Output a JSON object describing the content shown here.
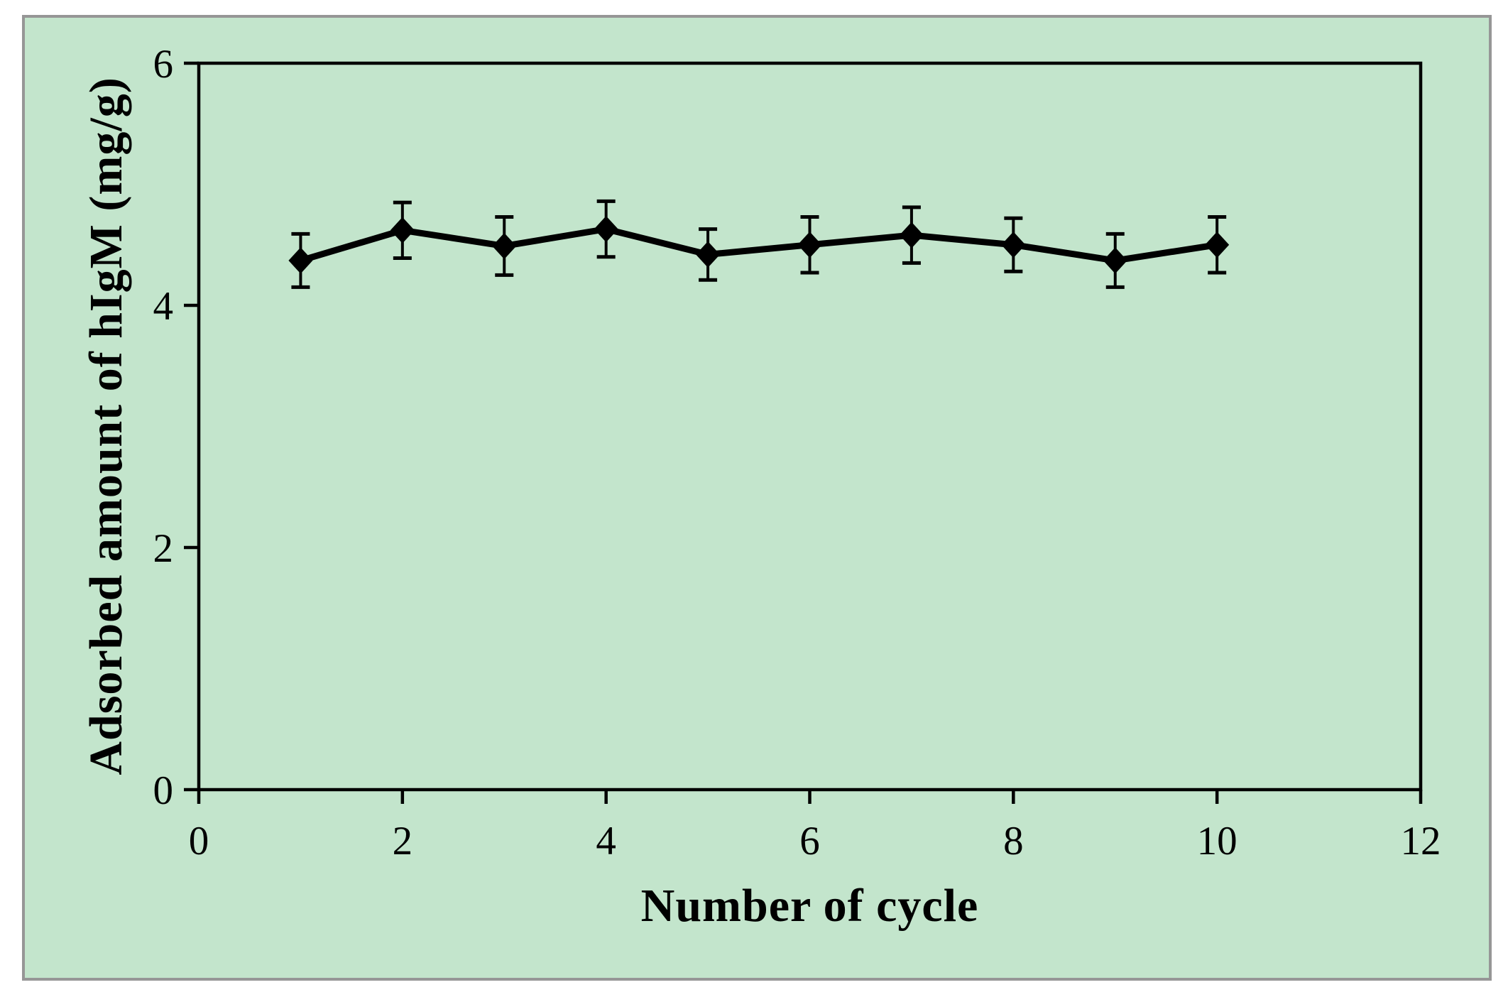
{
  "chart_data": {
    "type": "line",
    "title": "",
    "xlabel": "Number of cycle",
    "ylabel": "Adsorbed amount of hIgM (mg/g)",
    "x": [
      1,
      2,
      3,
      4,
      5,
      6,
      7,
      8,
      9,
      10
    ],
    "series": [
      {
        "name": "Adsorbed amount of hIgM",
        "values": [
          4.37,
          4.62,
          4.49,
          4.63,
          4.42,
          4.5,
          4.58,
          4.5,
          4.37,
          4.5
        ],
        "errors": [
          0.22,
          0.23,
          0.24,
          0.23,
          0.21,
          0.23,
          0.23,
          0.22,
          0.22,
          0.23
        ]
      }
    ],
    "xlim": [
      0,
      12
    ],
    "ylim": [
      0,
      6
    ],
    "xticks": [
      0,
      2,
      4,
      6,
      8,
      10,
      12
    ],
    "yticks": [
      0,
      2,
      4,
      6
    ],
    "grid": false,
    "legend": "none",
    "marker": "diamond",
    "colors": {
      "line": "#000000",
      "marker": "#000000",
      "axis": "#000000",
      "tick_label": "#000000",
      "plot_bg": "#c3e5cc",
      "frame_border": "#969696",
      "page_bg": "#ffffff"
    }
  }
}
